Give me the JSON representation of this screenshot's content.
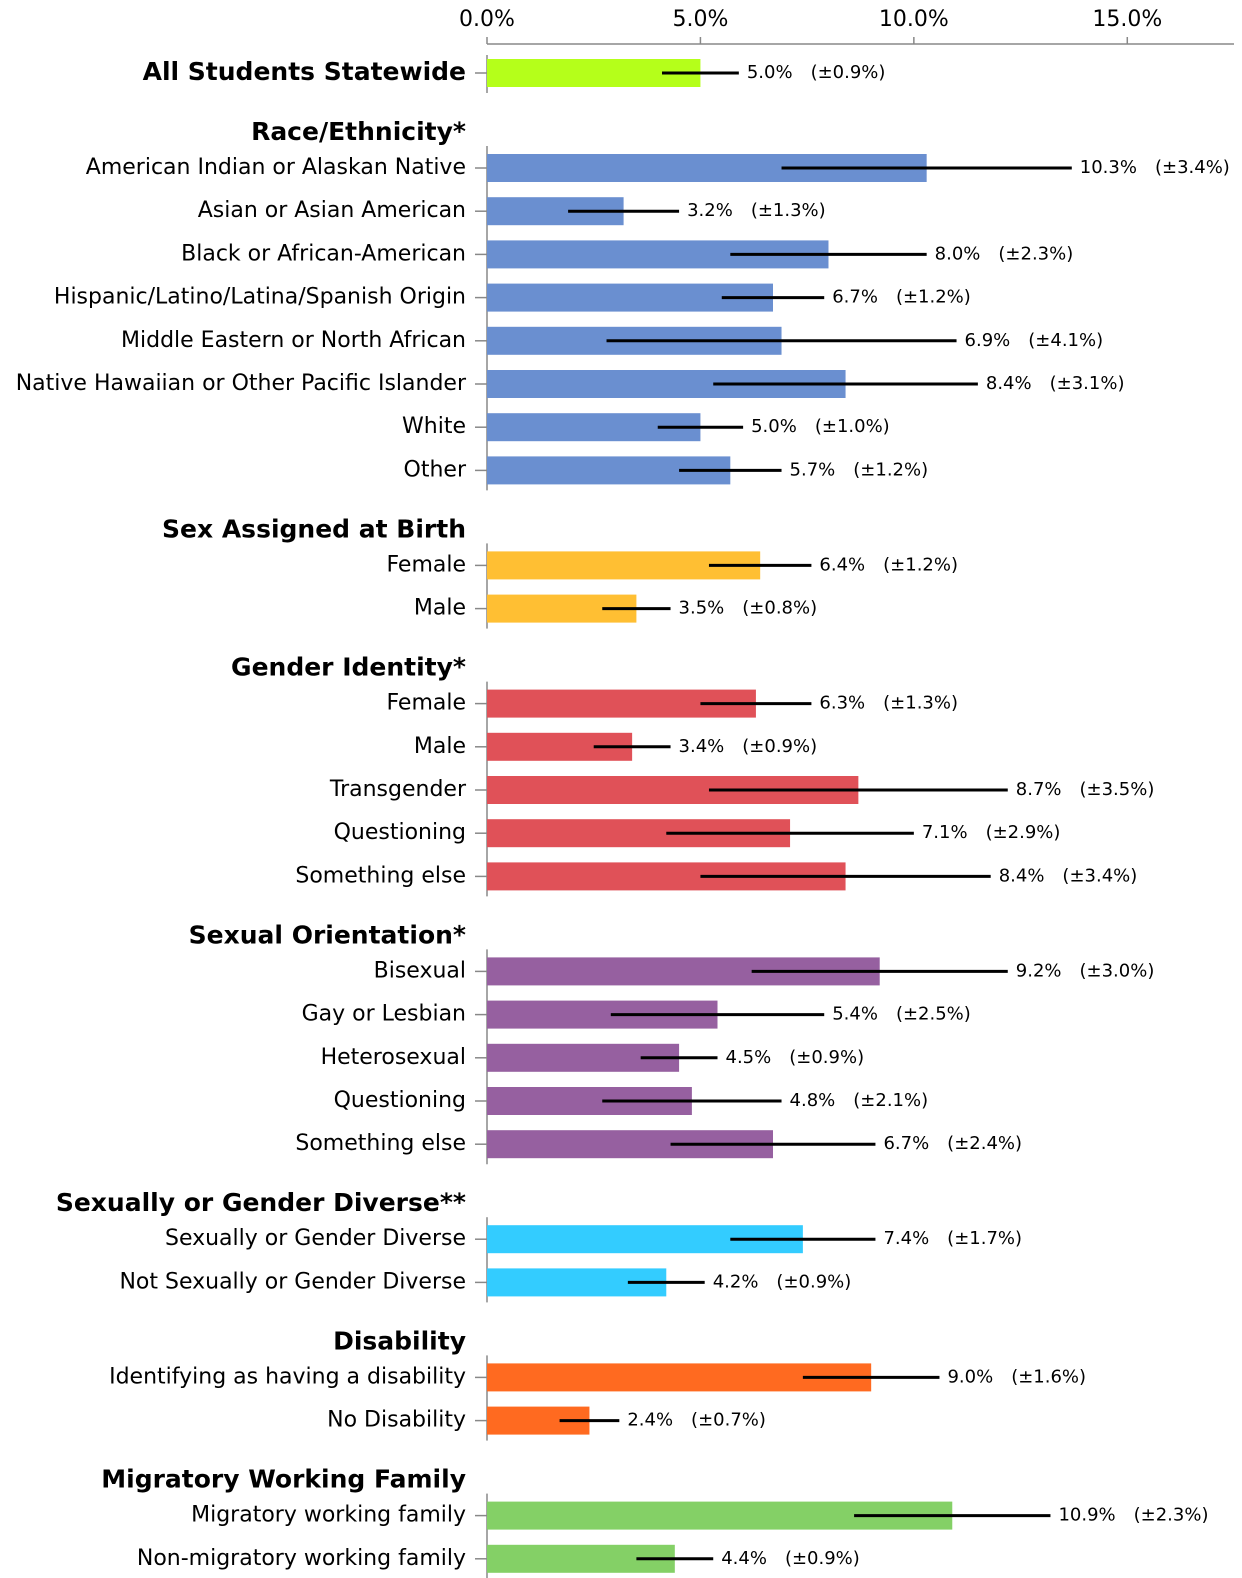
{
  "chart_data": {
    "type": "bar",
    "xlim": [
      0,
      17.5
    ],
    "xticks": [
      {
        "value": 0,
        "label": "0.0%"
      },
      {
        "value": 5,
        "label": "5.0%"
      },
      {
        "value": 10,
        "label": "10.0%"
      },
      {
        "value": 15,
        "label": "15.0%"
      }
    ],
    "groups": [
      {
        "color": "#b5ff1a",
        "categories": [
          "All Students Statewide"
        ],
        "values": [
          5.0
        ],
        "errors": [
          0.9
        ],
        "value_labels": [
          "5.0%"
        ],
        "error_labels": [
          "(±0.9%)"
        ]
      },
      {
        "name": "Race/Ethnicity*",
        "color": "#6a8fd0",
        "categories": [
          "American Indian or Alaskan Native",
          "Asian or Asian American",
          "Black or African-American",
          "Hispanic/Latino/Latina/Spanish Origin",
          "Middle Eastern or North African",
          "Native Hawaiian or Other Pacific Islander",
          "White",
          "Other"
        ],
        "values": [
          10.3,
          3.2,
          8.0,
          6.7,
          6.9,
          8.4,
          5.0,
          5.7
        ],
        "errors": [
          3.4,
          1.3,
          2.3,
          1.2,
          4.1,
          3.1,
          1.0,
          1.2
        ],
        "value_labels": [
          "10.3%",
          "3.2%",
          "8.0%",
          "6.7%",
          "6.9%",
          "8.4%",
          "5.0%",
          "5.7%"
        ],
        "error_labels": [
          "(±3.4%)",
          "(±1.3%)",
          "(±2.3%)",
          "(±1.2%)",
          "(±4.1%)",
          "(±3.1%)",
          "(±1.0%)",
          "(±1.2%)"
        ]
      },
      {
        "name": "Sex Assigned at Birth",
        "color": "#ffbf33",
        "categories": [
          "Female",
          "Male"
        ],
        "values": [
          6.4,
          3.5
        ],
        "errors": [
          1.2,
          0.8
        ],
        "value_labels": [
          "6.4%",
          "3.5%"
        ],
        "error_labels": [
          "(±1.2%)",
          "(±0.8%)"
        ]
      },
      {
        "name": "Gender Identity*",
        "color": "#e05158",
        "categories": [
          "Female",
          "Male",
          "Transgender",
          "Questioning",
          "Something else"
        ],
        "values": [
          6.3,
          3.4,
          8.7,
          7.1,
          8.4
        ],
        "errors": [
          1.3,
          0.9,
          3.5,
          2.9,
          3.4
        ],
        "value_labels": [
          "6.3%",
          "3.4%",
          "8.7%",
          "7.1%",
          "8.4%"
        ],
        "error_labels": [
          "(±1.3%)",
          "(±0.9%)",
          "(±3.5%)",
          "(±2.9%)",
          "(±3.4%)"
        ]
      },
      {
        "name": "Sexual Orientation*",
        "color": "#9660a0",
        "categories": [
          "Bisexual",
          "Gay or Lesbian",
          "Heterosexual",
          "Questioning",
          "Something else"
        ],
        "values": [
          9.2,
          5.4,
          4.5,
          4.8,
          6.7
        ],
        "errors": [
          3.0,
          2.5,
          0.9,
          2.1,
          2.4
        ],
        "value_labels": [
          "9.2%",
          "5.4%",
          "4.5%",
          "4.8%",
          "6.7%"
        ],
        "error_labels": [
          "(±3.0%)",
          "(±2.5%)",
          "(±0.9%)",
          "(±2.1%)",
          "(±2.4%)"
        ]
      },
      {
        "name": "Sexually or Gender Diverse**",
        "color": "#33ccff",
        "categories": [
          "Sexually or Gender Diverse",
          "Not Sexually or Gender Diverse"
        ],
        "values": [
          7.4,
          4.2
        ],
        "errors": [
          1.7,
          0.9
        ],
        "value_labels": [
          "7.4%",
          "4.2%"
        ],
        "error_labels": [
          "(±1.7%)",
          "(±0.9%)"
        ]
      },
      {
        "name": "Disability",
        "color": "#ff6a20",
        "categories": [
          "Identifying as having a disability",
          "No Disability"
        ],
        "values": [
          9.0,
          2.4
        ],
        "errors": [
          1.6,
          0.7
        ],
        "value_labels": [
          "9.0%",
          "2.4%"
        ],
        "error_labels": [
          "(±1.6%)",
          "(±0.7%)"
        ]
      },
      {
        "name": "Migratory Working Family",
        "color": "#84d066",
        "categories": [
          "Migratory working family",
          "Non-migratory working family"
        ],
        "values": [
          10.9,
          4.4
        ],
        "errors": [
          2.3,
          0.9
        ],
        "value_labels": [
          "10.9%",
          "4.4%"
        ],
        "error_labels": [
          "(±2.3%)",
          "(±0.9%)"
        ]
      }
    ]
  }
}
